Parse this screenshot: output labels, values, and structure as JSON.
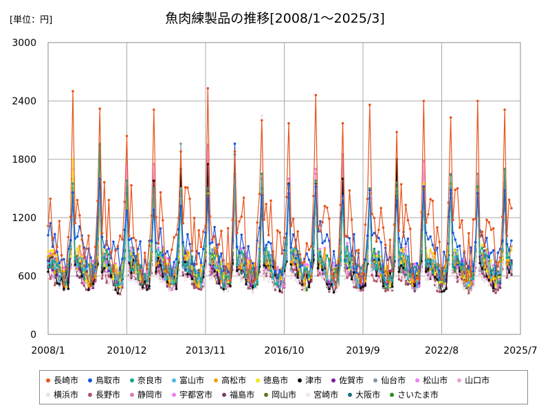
{
  "chart_data": {
    "type": "line",
    "title": "魚肉練製品の推移[2008/1～2025/3]",
    "unit_label": "[単位：円]",
    "xlabel": "",
    "ylabel": "",
    "ylim": [
      0,
      3000
    ],
    "y_ticks": [
      "0",
      "600",
      "1200",
      "1800",
      "2400",
      "3000"
    ],
    "xlim": [
      "2008-01",
      "2025-07"
    ],
    "x_ticks": [
      {
        "date": "2008-01",
        "label": "2008/1"
      },
      {
        "date": "2010-12",
        "label": "2010/12"
      },
      {
        "date": "2013-11",
        "label": "2013/11"
      },
      {
        "date": "2016-10",
        "label": "2016/10"
      },
      {
        "date": "2019-09",
        "label": "2019/9"
      },
      {
        "date": "2022-08",
        "label": "2022/8"
      },
      {
        "date": "2025-07",
        "label": "2025/7"
      }
    ],
    "grid": true,
    "legend_position": "bottom",
    "series_profile_note_excluded": true,
    "series": [
      {
        "name": "長崎市",
        "color": "#e8541c",
        "base": 1000,
        "amp": 0.72,
        "peaks": [
          2500,
          2320,
          2040,
          2310,
          1880,
          2530,
          1880,
          2200,
          2170,
          2460,
          2170,
          2360,
          2080,
          2400,
          2230,
          2400,
          2310
        ]
      },
      {
        "name": "鳥取市",
        "color": "#1a56db",
        "base": 860,
        "amp": 0.45,
        "peaks": [
          1460,
          1600,
          1270,
          1280,
          1320,
          1400,
          1960,
          1430,
          1540,
          1520,
          1420,
          1480,
          1380,
          1520,
          1480,
          1450,
          1480
        ]
      },
      {
        "name": "奈良市",
        "color": "#17a589",
        "base": 690,
        "amp": 0.4,
        "peaks": [
          1550,
          1960,
          1580,
          1500,
          1300,
          1500,
          1850,
          1650,
          1540,
          1580,
          1380,
          1500,
          1560,
          1480,
          1640,
          1520,
          1700
        ]
      },
      {
        "name": "富山市",
        "color": "#4fb8e0",
        "base": 680,
        "amp": 0.38,
        "peaks": [
          1450,
          1450,
          1250,
          1300,
          1500,
          1500,
          1600,
          1500,
          1520,
          1500,
          1380,
          1500,
          1480,
          1450,
          1500,
          1450,
          1500
        ]
      },
      {
        "name": "高松市",
        "color": "#f0a30a",
        "base": 700,
        "amp": 0.4,
        "peaks": [
          1450,
          1350,
          1400,
          1400,
          1400,
          1400,
          1500,
          1500,
          1500,
          1450,
          1400,
          1450,
          1500,
          1500,
          1550,
          1500,
          1500
        ]
      },
      {
        "name": "徳島市",
        "color": "#f5e31a",
        "base": 700,
        "amp": 0.4,
        "peaks": [
          1800,
          1500,
          1400,
          1500,
          1500,
          1450,
          1500,
          1450,
          1500,
          1500,
          1400,
          1500,
          1450,
          1550,
          1500,
          1500,
          1500
        ]
      },
      {
        "name": "津市",
        "color": "#111111",
        "base": 620,
        "amp": 0.4,
        "peaks": [
          1420,
          1450,
          1300,
          1580,
          1700,
          1750,
          1650,
          1450,
          1550,
          1550,
          1600,
          1500,
          1800,
          1500,
          1500,
          1500,
          1450
        ]
      },
      {
        "name": "佐賀市",
        "color": "#7b1fa2",
        "base": 680,
        "amp": 0.38,
        "peaks": [
          1500,
          1550,
          1450,
          1400,
          1400,
          1400,
          1450,
          1400,
          1450,
          1450,
          1400,
          1450,
          1450,
          1450,
          1450,
          1450,
          1450
        ]
      },
      {
        "name": "仙台市",
        "color": "#8795a1",
        "base": 660,
        "amp": 0.38,
        "peaks": [
          1600,
          1500,
          1500,
          1500,
          1960,
          1500,
          1500,
          1500,
          1500,
          1500,
          1450,
          1500,
          1500,
          1450,
          1500,
          1650,
          1500
        ]
      },
      {
        "name": "松山市",
        "color": "#f27ef0",
        "base": 720,
        "amp": 0.4,
        "peaks": [
          1700,
          1400,
          1750,
          1750,
          1600,
          1900,
          1550,
          1600,
          1600,
          1700,
          1600,
          1450,
          1700,
          1780,
          1650,
          1650,
          1550
        ]
      },
      {
        "name": "山口市",
        "color": "#e8a0d0",
        "base": 680,
        "amp": 0.38,
        "peaks": [
          1600,
          1450,
          1450,
          1450,
          1450,
          1450,
          1450,
          1450,
          1450,
          1450,
          1450,
          1450,
          1450,
          1450,
          1450,
          1450,
          1450
        ]
      },
      {
        "name": "横浜市",
        "color": "#ece0e4",
        "base": 560,
        "amp": 0.3,
        "peaks": [
          1300,
          1300,
          1300,
          1300,
          1300,
          1300,
          1300,
          2250,
          1300,
          1300,
          1300,
          1300,
          1300,
          1300,
          1300,
          1300,
          1300
        ]
      },
      {
        "name": "長野市",
        "color": "#b0546c",
        "base": 560,
        "amp": 0.35,
        "peaks": [
          1350,
          1350,
          1350,
          1350,
          1350,
          1350,
          1350,
          1350,
          1350,
          1350,
          1350,
          1350,
          1350,
          1350,
          1350,
          1350,
          1350
        ]
      },
      {
        "name": "静岡市",
        "color": "#d97cb8",
        "base": 660,
        "amp": 0.38,
        "peaks": [
          1600,
          1450,
          1450,
          1500,
          1500,
          1950,
          1450,
          1500,
          1500,
          1650,
          1850,
          1450,
          1500,
          1500,
          1500,
          1500,
          1500
        ]
      },
      {
        "name": "宇都宮市",
        "color": "#ee82ee",
        "base": 620,
        "amp": 0.35,
        "peaks": [
          1500,
          1400,
          1400,
          1400,
          1400,
          1400,
          1400,
          1400,
          1400,
          1400,
          1400,
          1400,
          1400,
          1400,
          1400,
          1400,
          1400
        ]
      },
      {
        "name": "福島市",
        "color": "#7a3d6e",
        "base": 600,
        "amp": 0.35,
        "peaks": [
          1450,
          1400,
          1400,
          1400,
          1400,
          1400,
          1400,
          1400,
          1400,
          1400,
          1400,
          1400,
          1400,
          1400,
          1400,
          1400,
          1400
        ]
      },
      {
        "name": "岡山市",
        "color": "#5a7a1e",
        "base": 640,
        "amp": 0.35,
        "peaks": [
          1450,
          1400,
          1400,
          1400,
          1400,
          1400,
          1400,
          1400,
          1400,
          1400,
          1400,
          1400,
          1400,
          1400,
          1400,
          1400,
          1400
        ]
      },
      {
        "name": "宮崎市",
        "color": "#f2e4ea",
        "base": 560,
        "amp": 0.3,
        "peaks": [
          1300,
          1300,
          1300,
          1300,
          1300,
          1300,
          1300,
          1300,
          1300,
          1300,
          1300,
          1300,
          1300,
          1300,
          1300,
          1300,
          1300
        ]
      },
      {
        "name": "大阪市",
        "color": "#1e6e7a",
        "base": 640,
        "amp": 0.35,
        "peaks": [
          1400,
          1400,
          1400,
          1400,
          1400,
          1400,
          1400,
          1400,
          1400,
          1400,
          1400,
          1400,
          1400,
          1400,
          1400,
          1400,
          1400
        ]
      },
      {
        "name": "さいたま市",
        "color": "#2e8b1e",
        "base": 630,
        "amp": 0.35,
        "peaks": [
          1450,
          1950,
          1400,
          1400,
          1400,
          1400,
          1400,
          1400,
          1400,
          1400,
          1400,
          1400,
          1400,
          1400,
          1400,
          1400,
          1700
        ]
      }
    ]
  }
}
